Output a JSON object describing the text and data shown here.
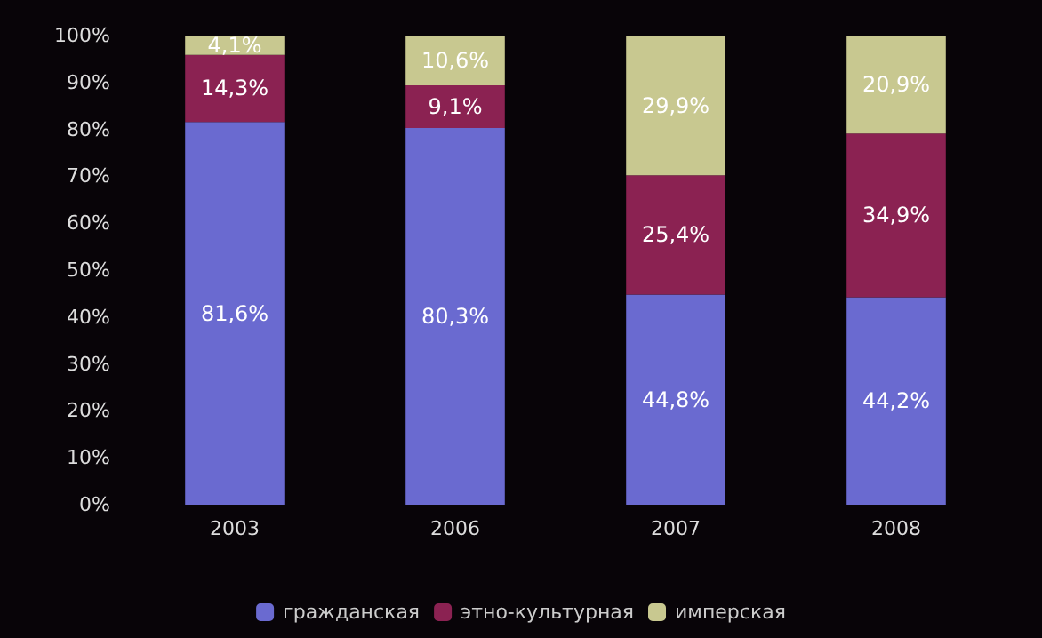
{
  "chart_data": {
    "type": "bar",
    "stacked": true,
    "categories": [
      "2003",
      "2006",
      "2007",
      "2008"
    ],
    "series": [
      {
        "name": "гражданская",
        "color": "#6a6ad0",
        "values": [
          81.6,
          80.3,
          44.8,
          44.2
        ],
        "value_labels": [
          "81,6%",
          "80,3%",
          "44,8%",
          "44,2%"
        ]
      },
      {
        "name": "этно-культурная",
        "color": "#8b2252",
        "values": [
          14.3,
          9.1,
          25.4,
          34.9
        ],
        "value_labels": [
          "14,3%",
          "9,1%",
          "25,4%",
          "34,9%"
        ]
      },
      {
        "name": "имперская",
        "color": "#c8c890",
        "values": [
          4.1,
          10.6,
          29.9,
          20.9
        ],
        "value_labels": [
          "4,1%",
          "10,6%",
          "29,9%",
          "20,9%"
        ]
      }
    ],
    "ylim": [
      0,
      100
    ],
    "yticks": [
      {
        "value": 0,
        "label": "0%"
      },
      {
        "value": 10,
        "label": "10%"
      },
      {
        "value": 20,
        "label": "20%"
      },
      {
        "value": 30,
        "label": "30%"
      },
      {
        "value": 40,
        "label": "40%"
      },
      {
        "value": 50,
        "label": "50%"
      },
      {
        "value": 60,
        "label": "60%"
      },
      {
        "value": 70,
        "label": "70%"
      },
      {
        "value": 80,
        "label": "80%"
      },
      {
        "value": 90,
        "label": "90%"
      },
      {
        "value": 100,
        "label": "100%"
      }
    ],
    "legend": "bottom"
  }
}
